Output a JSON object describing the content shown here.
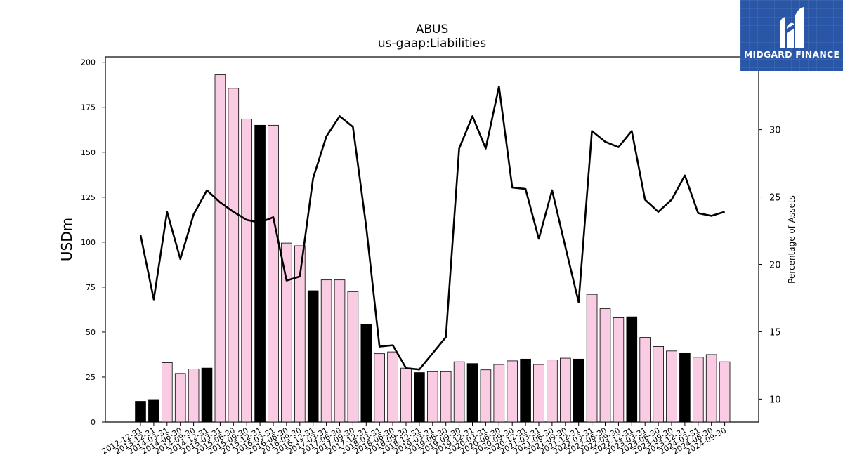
{
  "chart_data": {
    "type": "bar",
    "title": "ABUS",
    "subtitle": "us-gaap:Liabilities",
    "ylabel": "USDm",
    "y2label": "Percentage of Assets",
    "ylim": [
      0,
      203
    ],
    "y2lim": [
      8.3,
      35.4
    ],
    "yticks": [
      "0",
      "25",
      "50",
      "75",
      "100",
      "125",
      "150",
      "175",
      "200"
    ],
    "y2ticks": [
      "10",
      "15",
      "20",
      "25",
      "30"
    ],
    "grid": false,
    "categories": [
      "2012-12-31",
      "2013-12-31",
      "2014-03-31",
      "2014-06-30",
      "2014-09-30",
      "2014-12-31",
      "2015-03-31",
      "2015-06-30",
      "2015-09-30",
      "2015-12-31",
      "2016-03-31",
      "2016-06-30",
      "2016-09-30",
      "2016-12-31",
      "2017-03-31",
      "2017-06-30",
      "2017-09-30",
      "2017-12-31",
      "2018-03-31",
      "2018-06-30",
      "2018-09-30",
      "2018-12-31",
      "2019-03-31",
      "2019-06-30",
      "2019-09-30",
      "2019-12-31",
      "2020-03-31",
      "2020-06-30",
      "2020-09-30",
      "2020-12-31",
      "2021-03-31",
      "2021-06-30",
      "2021-09-30",
      "2021-12-31",
      "2022-03-31",
      "2022-06-30",
      "2022-09-30",
      "2022-12-31",
      "2023-03-31",
      "2023-06-30",
      "2023-09-30",
      "2023-12-31",
      "2024-03-31",
      "2024-06-30",
      "2024-09-30"
    ],
    "series": [
      {
        "type": "bar",
        "values": [
          11.5,
          12.5,
          33,
          27,
          29.5,
          30,
          193,
          185.5,
          168.5,
          165,
          165,
          99.5,
          98,
          73,
          79,
          79,
          72.5,
          54.5,
          38,
          39,
          30,
          27.5,
          28,
          28,
          33.5,
          32.5,
          29,
          32,
          34,
          35,
          32,
          34.5,
          35.5,
          35,
          71,
          63,
          58,
          58.5,
          47,
          42,
          39.5,
          38.5,
          36,
          37.5,
          33.5
        ],
        "highlight": [
          true,
          true,
          false,
          false,
          false,
          true,
          false,
          false,
          false,
          true,
          false,
          false,
          false,
          true,
          false,
          false,
          false,
          true,
          false,
          false,
          false,
          true,
          false,
          false,
          false,
          true,
          false,
          false,
          false,
          true,
          false,
          false,
          false,
          true,
          false,
          false,
          false,
          true,
          false,
          false,
          false,
          true,
          false,
          false,
          false
        ],
        "color_highlight": "#000000",
        "color_normal": "#f9cce3"
      },
      {
        "type": "line",
        "axis": "right",
        "color": "#000000",
        "values": [
          22.2,
          17.4,
          23.9,
          20.4,
          23.7,
          25.5,
          24.6,
          23.9,
          23.3,
          23.1,
          23.5,
          18.8,
          19.1,
          26.4,
          29.5,
          31.0,
          30.2,
          22.8,
          13.9,
          14.0,
          12.3,
          12.2,
          13.4,
          14.6,
          28.6,
          31.0,
          28.6,
          33.2,
          25.7,
          25.6,
          21.9,
          25.5,
          21.3,
          17.2,
          29.9,
          29.1,
          28.7,
          29.9,
          24.8,
          23.9,
          24.8,
          26.6,
          23.8,
          23.6,
          23.9
        ]
      }
    ]
  },
  "logo": {
    "text": "MIDGARD FINANCE",
    "icon": "midgard-logo-icon"
  }
}
